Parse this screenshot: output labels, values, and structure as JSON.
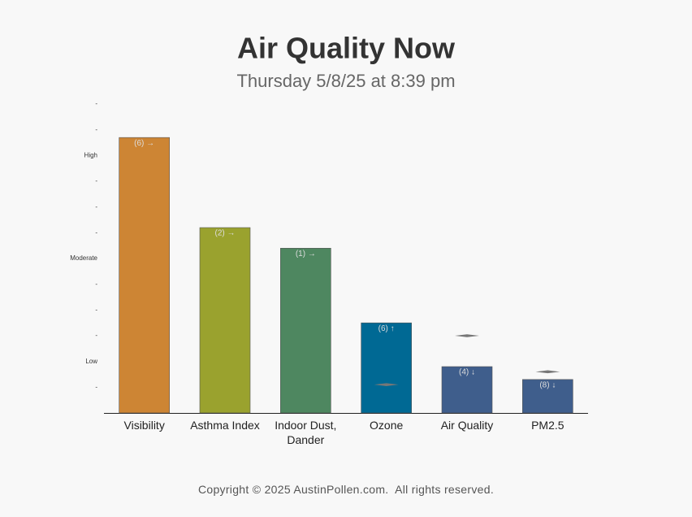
{
  "chart_data": {
    "type": "bar",
    "title": "Air Quality Now",
    "subtitle": "Thursday 5/8/25 at 8:39 pm",
    "categories": [
      "Visibility",
      "Asthma Index",
      "Indoor Dust, Dander",
      "Ozone",
      "Air Quality",
      "PM2.5"
    ],
    "values": [
      10.7,
      7.2,
      6.4,
      3.5,
      1.8,
      1.3
    ],
    "trend_labels": [
      "(6) →",
      "(2) →",
      "(1) →",
      "(6) ↑",
      "(4) ↓",
      "(8) ↓"
    ],
    "marker_values": [
      null,
      null,
      null,
      1.1,
      3.0,
      1.6
    ],
    "colors": [
      "#cd8534",
      "#9aa22e",
      "#4e8760",
      "#006994",
      "#3f5e8c",
      "#3f5e8c"
    ],
    "marker_color": "#777777",
    "ylim": [
      0,
      12
    ],
    "yticks": [
      {
        "value": 1,
        "label": "-"
      },
      {
        "value": 2,
        "label": "Low"
      },
      {
        "value": 3,
        "label": "-"
      },
      {
        "value": 4,
        "label": "-"
      },
      {
        "value": 5,
        "label": "-"
      },
      {
        "value": 6,
        "label": "Moderate"
      },
      {
        "value": 7,
        "label": "-"
      },
      {
        "value": 8,
        "label": "-"
      },
      {
        "value": 9,
        "label": "-"
      },
      {
        "value": 10,
        "label": "High"
      },
      {
        "value": 11,
        "label": "-"
      },
      {
        "value": 12,
        "label": "-"
      }
    ],
    "footer": "Copyright © 2025 AustinPollen.com.  All rights reserved."
  }
}
